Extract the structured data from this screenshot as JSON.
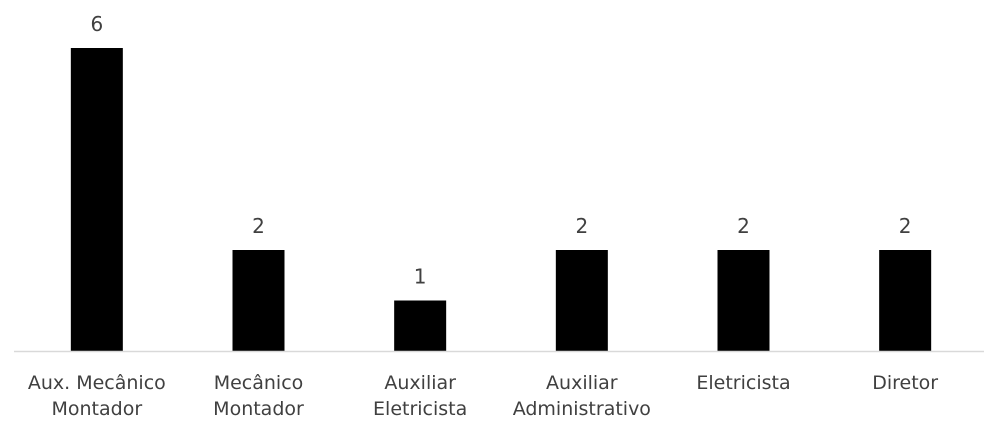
{
  "chart_data": {
    "type": "bar",
    "categories": [
      [
        "Aux. Mecânico",
        "Montador"
      ],
      [
        "Mecânico",
        "Montador"
      ],
      [
        "Auxiliar",
        "Eletricista"
      ],
      [
        "Auxiliar",
        "Administrativo"
      ],
      [
        "Eletricista"
      ],
      [
        "Diretor"
      ]
    ],
    "values": [
      6,
      2,
      1,
      2,
      2,
      2
    ],
    "data_labels": [
      "6",
      "2",
      "1",
      "2",
      "2",
      "2"
    ],
    "ylim": [
      0,
      6
    ],
    "grid": false,
    "legend": "none",
    "bar_color": "#000000",
    "axis_color": "#d9d9d9",
    "text_color": "#404040"
  }
}
